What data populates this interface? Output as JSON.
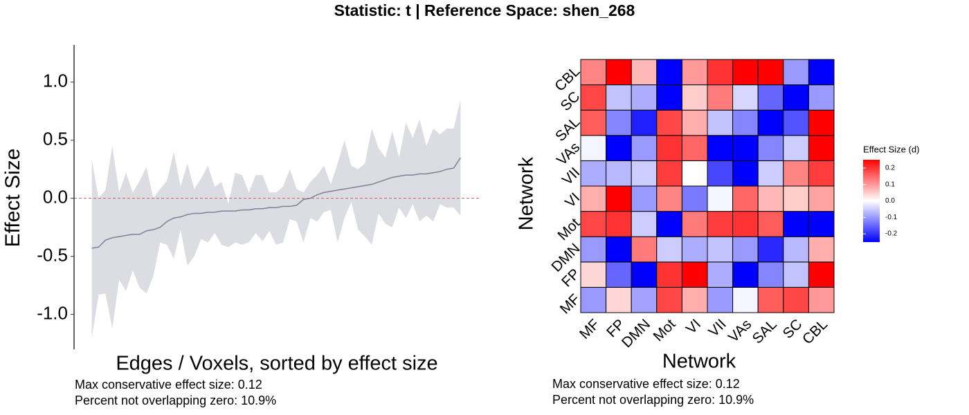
{
  "title": "Statistic: t   |   Reference Space: shen_268",
  "chart_data": [
    {
      "type": "ribbon-line",
      "x_label": "Edges / Voxels, sorted by effect size",
      "y_label": "Effect Size",
      "notes": [
        "Max conservative effect size: 0.12",
        "Percent not overlapping zero: 10.9%"
      ],
      "x": [
        1,
        2,
        3,
        4,
        5,
        6,
        7,
        8,
        9,
        10,
        11,
        12,
        13,
        14,
        15,
        16,
        17,
        18,
        19,
        20,
        21,
        22,
        23,
        24,
        25,
        26,
        27,
        28,
        29,
        30,
        31,
        32,
        33,
        34,
        35,
        36,
        37,
        38,
        39,
        40,
        41,
        42,
        43,
        44,
        45,
        46,
        47,
        48,
        49,
        50,
        51,
        52,
        53,
        54,
        55
      ],
      "values": [
        -0.43,
        -0.42,
        -0.36,
        -0.34,
        -0.33,
        -0.32,
        -0.31,
        -0.31,
        -0.28,
        -0.27,
        -0.25,
        -0.2,
        -0.17,
        -0.16,
        -0.14,
        -0.13,
        -0.13,
        -0.12,
        -0.12,
        -0.11,
        -0.11,
        -0.11,
        -0.1,
        -0.1,
        -0.09,
        -0.09,
        -0.08,
        -0.08,
        -0.07,
        -0.07,
        -0.06,
        -0.01,
        0,
        0.03,
        0.05,
        0.06,
        0.07,
        0.08,
        0.09,
        0.1,
        0.11,
        0.12,
        0.14,
        0.16,
        0.18,
        0.19,
        0.2,
        0.2,
        0.21,
        0.21,
        0.22,
        0.23,
        0.25,
        0.26,
        0.35
      ],
      "upper": [
        0.33,
        0,
        0.07,
        0.45,
        0.05,
        0.22,
        0.05,
        0.15,
        0.27,
        0,
        0.08,
        0.15,
        0.4,
        0.1,
        0.3,
        0.08,
        0.17,
        0.28,
        0.1,
        0.14,
        -0.05,
        0.22,
        0.2,
        0.05,
        0.2,
        0.2,
        0.05,
        0.05,
        0.1,
        0.25,
        0.08,
        0.05,
        0.14,
        0.2,
        0.28,
        0.12,
        0.3,
        0.5,
        0.28,
        0.25,
        0.3,
        0.6,
        0.43,
        0.35,
        0.58,
        0.35,
        0.65,
        0.52,
        0.68,
        0.45,
        0.6,
        0.55,
        0.6,
        0.6,
        0.85
      ],
      "lower": [
        -1.2,
        -0.83,
        -0.82,
        -1.12,
        -0.7,
        -0.8,
        -0.62,
        -0.77,
        -0.82,
        -0.67,
        -0.38,
        -0.4,
        -0.52,
        -0.27,
        -0.58,
        -0.5,
        -0.35,
        -0.38,
        -0.3,
        -0.4,
        -0.42,
        -0.38,
        -0.4,
        -0.38,
        -0.3,
        -0.37,
        -0.28,
        -0.4,
        -0.38,
        -0.18,
        -0.2,
        -0.38,
        -0.17,
        -0.2,
        -0.12,
        -0.1,
        -0.38,
        -0.17,
        -0.03,
        -0.27,
        -0.33,
        -0.4,
        -0.13,
        -0.22,
        -0.25,
        -0.08,
        -0.17,
        -0.05,
        -0.2,
        -0.15,
        -0.2,
        -0.05,
        -0.08,
        -0.08,
        -0.15
      ],
      "color": "#7f7f96",
      "band_color": "#dcdce3",
      "hline": 0,
      "hline_color": "#c86464",
      "xlim": [
        -1.6,
        57.8
      ],
      "ylim": [
        -1.3,
        1.32
      ],
      "yticks": [
        {
          "value": 1,
          "label": "1.0"
        },
        0.5,
        {
          "value": 0,
          "label": "0.0"
        },
        -0.5,
        {
          "value": -1,
          "label": "-1.0"
        }
      ]
    },
    {
      "type": "heatmap",
      "x_label": "Network",
      "y_label": "Network",
      "notes": [
        "Max conservative effect size: 0.12",
        "Percent not overlapping zero: 10.9%"
      ],
      "x_categories": [
        "MF",
        "FP",
        "DMN",
        "Mot",
        "VI",
        "VII",
        "VAs",
        "SAL",
        "SC",
        "CBL"
      ],
      "y_categories": [
        "MF",
        "FP",
        "DMN",
        "Mot",
        "VI",
        "VII",
        "VAs",
        "SAL",
        "SC",
        "CBL"
      ],
      "values": [
        [
          -0.1,
          0.04,
          -0.09,
          0.18,
          0.08,
          -0.1,
          -0.01,
          0.16,
          0.18,
          0.1
        ],
        [
          0.04,
          -0.15,
          -0.25,
          0.2,
          0.25,
          -0.08,
          -0.25,
          -0.12,
          -0.06,
          0.25
        ],
        [
          -0.1,
          -0.25,
          0.13,
          -0.05,
          -0.08,
          -0.06,
          -0.1,
          -0.21,
          -0.07,
          0.08
        ],
        [
          0.18,
          0.2,
          -0.05,
          -0.25,
          0.13,
          0.19,
          0.2,
          0.16,
          -0.25,
          -0.25
        ],
        [
          0.08,
          0.25,
          -0.1,
          0.12,
          -0.13,
          -0.01,
          0.15,
          0.07,
          0.05,
          0.09
        ],
        [
          -0.08,
          -0.07,
          -0.05,
          0.19,
          0,
          -0.18,
          -0.25,
          -0.05,
          0.12,
          0.19
        ],
        [
          -0.01,
          -0.25,
          -0.1,
          0.2,
          0.15,
          -0.25,
          -0.25,
          -0.12,
          -0.05,
          0.25
        ],
        [
          0.16,
          -0.12,
          -0.22,
          0.18,
          0.08,
          -0.06,
          -0.12,
          -0.25,
          -0.17,
          0.25
        ],
        [
          0.18,
          -0.06,
          -0.08,
          -0.25,
          0.05,
          0.13,
          -0.04,
          -0.15,
          -0.25,
          -0.1
        ],
        [
          0.12,
          0.25,
          0.07,
          -0.25,
          0.1,
          0.2,
          0.25,
          0.25,
          -0.1,
          -0.25
        ]
      ],
      "colorbar": {
        "title": "Effect Size (d)",
        "lim": [
          -0.25,
          0.25
        ],
        "colors": [
          "#0000ff",
          "#ffffff",
          "#ff0000"
        ],
        "ticks": [
          0.2,
          0.1,
          {
            "value": 0,
            "label": "0.0"
          },
          -0.1,
          -0.2
        ]
      }
    }
  ]
}
